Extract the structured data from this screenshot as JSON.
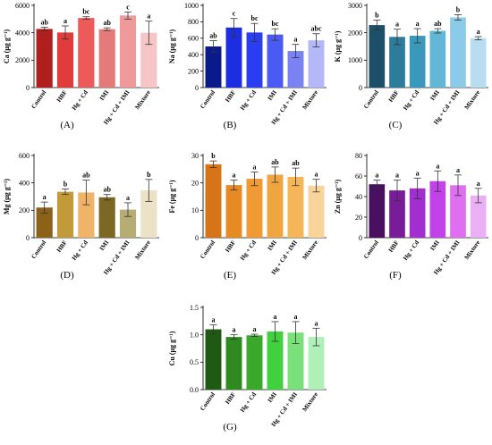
{
  "categories": [
    "Control",
    "HBF",
    "Hg + Cd",
    "IMI",
    "Hg + Cd + IMI",
    "Mixture"
  ],
  "chart_data": [
    {
      "type": "bar",
      "caption": "(A)",
      "ylabel": "Ca (µg g⁻¹)",
      "ylim": [
        0,
        6000
      ],
      "yticks": [
        0,
        2000,
        4000,
        6000
      ],
      "values": [
        4280,
        4020,
        5080,
        4260,
        5260,
        4000
      ],
      "errors": [
        130,
        480,
        90,
        100,
        260,
        850
      ],
      "letters": [
        "ab",
        "a",
        "bc",
        "ab",
        "c",
        "a"
      ],
      "colors": [
        "#b01e1e",
        "#e03c3c",
        "#ec5a5a",
        "#e47a7a",
        "#ef9a9a",
        "#f6c6c6"
      ]
    },
    {
      "type": "bar",
      "caption": "(B)",
      "ylabel": "Na (µg g⁻¹)",
      "ylim": [
        0,
        1000
      ],
      "yticks": [
        0,
        200,
        400,
        600,
        800,
        1000
      ],
      "values": [
        500,
        730,
        670,
        645,
        445,
        575
      ],
      "errors": [
        70,
        110,
        110,
        70,
        80,
        80
      ],
      "letters": [
        "ab",
        "c",
        "bc",
        "bc",
        "a",
        "abc"
      ],
      "colors": [
        "#0a1a8a",
        "#1c2ee0",
        "#2a3ef0",
        "#4a5af2",
        "#7a82f4",
        "#b4b8f8"
      ]
    },
    {
      "type": "bar",
      "caption": "(C)",
      "ylabel": "K (µg g⁻¹)",
      "ylim": [
        0,
        3000
      ],
      "yticks": [
        0,
        1000,
        2000,
        3000
      ],
      "values": [
        2280,
        1850,
        1890,
        2070,
        2560,
        1800
      ],
      "errors": [
        180,
        280,
        260,
        80,
        100,
        60
      ],
      "letters": [
        "b",
        "a",
        "a",
        "ab",
        "b",
        "a"
      ],
      "colors": [
        "#1e4f68",
        "#2d7c9c",
        "#3a98bc",
        "#62b6d6",
        "#8ccaea",
        "#b8dcf0"
      ]
    },
    {
      "type": "bar",
      "caption": "(D)",
      "ylabel": "Mg (µg g⁻¹)",
      "ylim": [
        0,
        600
      ],
      "yticks": [
        0,
        200,
        400,
        600
      ],
      "values": [
        220,
        335,
        330,
        295,
        205,
        345
      ],
      "errors": [
        40,
        20,
        90,
        20,
        50,
        80
      ],
      "letters": [
        "a",
        "b",
        "ab",
        "ab",
        "a",
        "b"
      ],
      "colors": [
        "#8c6218",
        "#c29a3a",
        "#f0b468",
        "#7a6824",
        "#b7ad74",
        "#ece2c8"
      ]
    },
    {
      "type": "bar",
      "caption": "(E)",
      "ylabel": "Fe (µg g⁻¹)",
      "ylim": [
        0,
        30
      ],
      "yticks": [
        0,
        10,
        20,
        30
      ],
      "values": [
        26.8,
        19.2,
        21.5,
        23.0,
        22.2,
        19.0
      ],
      "errors": [
        1.2,
        1.8,
        2.5,
        2.8,
        3.2,
        2.3
      ],
      "letters": [
        "b",
        "a",
        "a",
        "ab",
        "ab",
        "a"
      ],
      "colors": [
        "#d87418",
        "#e88a24",
        "#f09a34",
        "#f0a640",
        "#f4b658",
        "#f8d49c"
      ]
    },
    {
      "type": "bar",
      "caption": "(F)",
      "ylabel": "Zn (µg g⁻¹)",
      "ylim": [
        0,
        80
      ],
      "yticks": [
        0,
        20,
        40,
        60,
        80
      ],
      "values": [
        52,
        46,
        48,
        55,
        51,
        41
      ],
      "errors": [
        4,
        10,
        10,
        10,
        10,
        7
      ],
      "letters": [
        "a",
        "a",
        "a",
        "a",
        "a",
        "a"
      ],
      "colors": [
        "#4a1060",
        "#781c9a",
        "#a22ed0",
        "#c042e8",
        "#e06ef2",
        "#eab0f6"
      ]
    },
    {
      "type": "bar",
      "caption": "(G)",
      "ylabel": "Cu (µg g⁻¹)",
      "ylim": [
        0,
        1.5
      ],
      "yticks": [
        0.0,
        0.5,
        1.0,
        1.5
      ],
      "values": [
        1.1,
        0.96,
        0.99,
        1.06,
        1.04,
        0.96
      ],
      "errors": [
        0.08,
        0.04,
        0.02,
        0.18,
        0.2,
        0.16
      ],
      "letters": [
        "a",
        "a",
        "a",
        "a",
        "a",
        "a"
      ],
      "colors": [
        "#1f5a14",
        "#2e8a1e",
        "#3aa82a",
        "#40d040",
        "#7ae07a",
        "#b0f0b8"
      ]
    }
  ]
}
